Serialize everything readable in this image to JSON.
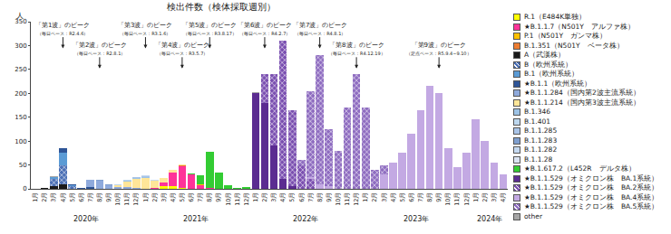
{
  "chart_data": {
    "type": "bar",
    "title": "検出件数（検体採取週別）",
    "y_label": "人",
    "stacked": true,
    "grid": false,
    "legend": "right",
    "ylim": [
      0,
      350
    ],
    "yticks": [
      0,
      50,
      100,
      150,
      200,
      250,
      300,
      350
    ],
    "years": [
      "2020年",
      "2021年",
      "2022年",
      "2023年",
      "2024年"
    ],
    "categories": [
      "1月",
      "2月",
      "3月",
      "4月",
      "5月",
      "6月",
      "7月",
      "8月",
      "9月",
      "10月",
      "11月",
      "12月",
      "1月",
      "2月",
      "3月",
      "4月",
      "5月",
      "6月",
      "7月",
      "8月",
      "9月",
      "10月",
      "11月",
      "12月",
      "1月",
      "2月",
      "3月",
      "4月",
      "5月",
      "6月",
      "7月",
      "8月",
      "9月",
      "10月",
      "11月",
      "12月",
      "1月",
      "2月",
      "3月",
      "4月",
      "5月",
      "6月",
      "7月",
      "8月",
      "9月",
      "10月",
      "11月",
      "12月",
      "1月",
      "2月",
      "3月",
      "4月"
    ],
    "annotations": [
      {
        "text": "「第1波」のピーク",
        "note": "（毎日ベース：R2.4.6）",
        "category_index": 3
      },
      {
        "text": "「第2波」のピーク",
        "note": "（毎日ベース：R2.8.1）",
        "category_index": 7
      },
      {
        "text": "「第3波」のピーク",
        "note": "（毎日ベース：R3.1.6）",
        "category_index": 12
      },
      {
        "text": "「第4波」のピーク",
        "note": "（毎日ベース：R3.5.7）",
        "category_index": 16
      },
      {
        "text": "「第5波」のピーク",
        "note": "（毎日ベース：R3.8.17）",
        "category_index": 19
      },
      {
        "text": "「第6波」のピーク",
        "note": "（毎日ベース：R4.2.7）",
        "category_index": 25
      },
      {
        "text": "「第7波」のピーク",
        "note": "（毎日ベース：R4.8.1）",
        "category_index": 31
      },
      {
        "text": "「第8波」のピーク",
        "note": "（毎日ベース：R4.12.19）",
        "category_index": 35
      },
      {
        "text": "「第9波」のピーク",
        "note": "（定点ベース：R5.9.4~9.10）",
        "category_index": 44
      }
    ],
    "series": [
      {
        "name": "R.1（E484K単独）",
        "color": "#ffff00",
        "values": [
          0,
          0,
          0,
          0,
          0,
          0,
          0,
          0,
          0,
          0,
          0,
          0,
          0,
          0,
          5,
          5,
          2,
          0,
          0,
          0,
          0,
          0,
          0,
          0,
          0,
          0,
          0,
          0,
          0,
          0,
          0,
          0,
          0,
          0,
          0,
          0,
          0,
          0,
          0,
          0,
          0,
          0,
          0,
          0,
          0,
          0,
          0,
          0,
          0,
          0,
          0,
          0
        ]
      },
      {
        "name": "★B.1.1.7（N501Y　アルファ株）",
        "color": "#ff3399",
        "values": [
          0,
          0,
          0,
          0,
          0,
          0,
          0,
          0,
          0,
          0,
          0,
          0,
          0,
          2,
          8,
          30,
          45,
          30,
          8,
          2,
          0,
          0,
          0,
          0,
          0,
          0,
          0,
          0,
          0,
          0,
          0,
          0,
          0,
          0,
          0,
          0,
          0,
          0,
          0,
          0,
          0,
          0,
          0,
          0,
          0,
          0,
          0,
          0,
          0,
          0,
          0,
          0
        ]
      },
      {
        "name": "P.1（N501Y　ガンマ株）",
        "color": "#ffc000",
        "values": [
          0,
          0,
          0,
          0,
          0,
          0,
          0,
          0,
          0,
          0,
          0,
          0,
          0,
          0,
          0,
          0,
          1,
          0,
          1,
          0,
          0,
          0,
          0,
          0,
          0,
          0,
          0,
          0,
          0,
          0,
          0,
          0,
          0,
          0,
          0,
          0,
          0,
          0,
          0,
          0,
          0,
          0,
          0,
          0,
          0,
          0,
          0,
          0,
          0,
          0,
          0,
          0
        ]
      },
      {
        "name": "B.1.351（N501Y　ベータ株）",
        "color": "#ed7d31",
        "values": [
          0,
          0,
          0,
          0,
          0,
          0,
          0,
          0,
          0,
          0,
          0,
          0,
          0,
          0,
          0,
          0,
          1,
          0,
          0,
          0,
          0,
          0,
          0,
          0,
          0,
          0,
          0,
          0,
          0,
          0,
          0,
          0,
          0,
          0,
          0,
          0,
          0,
          0,
          0,
          0,
          0,
          0,
          0,
          0,
          0,
          0,
          0,
          0,
          0,
          0,
          0,
          0
        ]
      },
      {
        "name": "A（武漢株）",
        "color": "#1a1a1a",
        "values": [
          0,
          1,
          5,
          10,
          0,
          0,
          0,
          0,
          0,
          0,
          0,
          0,
          0,
          0,
          0,
          0,
          0,
          0,
          0,
          0,
          0,
          0,
          0,
          0,
          0,
          0,
          0,
          0,
          0,
          0,
          0,
          0,
          0,
          0,
          0,
          0,
          0,
          0,
          0,
          0,
          0,
          0,
          0,
          0,
          0,
          0,
          0,
          0,
          0,
          0,
          0,
          0
        ]
      },
      {
        "name": "B（欧州系統）",
        "color": "#4a6fb5",
        "marker": "hatched",
        "values": [
          0,
          0,
          15,
          40,
          5,
          0,
          0,
          0,
          0,
          0,
          0,
          0,
          0,
          0,
          0,
          0,
          0,
          0,
          0,
          0,
          0,
          0,
          0,
          0,
          0,
          0,
          0,
          0,
          0,
          0,
          0,
          0,
          0,
          0,
          0,
          0,
          0,
          0,
          0,
          0,
          0,
          0,
          0,
          0,
          0,
          0,
          0,
          0,
          0,
          0,
          0,
          0
        ]
      },
      {
        "name": "B.1（欧州系統）",
        "color": "#5b9bd5",
        "values": [
          0,
          0,
          5,
          25,
          3,
          0,
          0,
          0,
          0,
          0,
          0,
          0,
          0,
          0,
          0,
          0,
          0,
          0,
          0,
          0,
          0,
          0,
          0,
          0,
          0,
          0,
          0,
          0,
          0,
          0,
          0,
          0,
          0,
          0,
          0,
          0,
          0,
          0,
          0,
          0,
          0,
          0,
          0,
          0,
          0,
          0,
          0,
          0,
          0,
          0,
          0,
          0
        ]
      },
      {
        "name": "★B.1.1（欧州系統）",
        "color": "#2f5597",
        "values": [
          0,
          0,
          0,
          10,
          2,
          2,
          3,
          0,
          0,
          0,
          0,
          0,
          0,
          0,
          0,
          0,
          0,
          0,
          0,
          0,
          0,
          0,
          0,
          0,
          0,
          0,
          0,
          0,
          0,
          0,
          0,
          0,
          0,
          0,
          0,
          0,
          0,
          0,
          0,
          0,
          0,
          0,
          0,
          0,
          0,
          0,
          0,
          0,
          0,
          0,
          0,
          0
        ]
      },
      {
        "name": "★B.1.1.284（国内第2波主流系統）",
        "color": "#8faadc",
        "values": [
          0,
          0,
          0,
          0,
          0,
          0,
          15,
          17,
          7,
          4,
          3,
          2,
          0,
          0,
          0,
          0,
          0,
          0,
          0,
          0,
          0,
          0,
          0,
          0,
          0,
          0,
          0,
          0,
          0,
          0,
          0,
          0,
          0,
          0,
          0,
          0,
          0,
          0,
          0,
          0,
          0,
          0,
          0,
          0,
          0,
          0,
          0,
          0,
          0,
          0,
          0,
          0
        ]
      },
      {
        "name": "★B.1.1.214（国内第3波主流系統）",
        "color": "#ffe699",
        "values": [
          0,
          0,
          0,
          0,
          0,
          0,
          0,
          0,
          0,
          3,
          12,
          18,
          22,
          15,
          10,
          5,
          2,
          0,
          0,
          0,
          0,
          0,
          0,
          0,
          0,
          0,
          0,
          0,
          0,
          0,
          0,
          0,
          0,
          0,
          0,
          0,
          0,
          0,
          0,
          0,
          0,
          0,
          0,
          0,
          0,
          0,
          0,
          0,
          0,
          0,
          0,
          0
        ]
      },
      {
        "name": "B.1.346",
        "color": "#9dc3e6",
        "values": [
          0,
          0,
          0,
          0,
          0,
          0,
          0,
          0,
          0,
          0,
          2,
          2,
          3,
          0,
          0,
          0,
          0,
          0,
          0,
          0,
          0,
          0,
          0,
          0,
          0,
          0,
          0,
          0,
          0,
          0,
          0,
          0,
          0,
          0,
          0,
          0,
          0,
          0,
          0,
          0,
          0,
          0,
          0,
          0,
          0,
          0,
          0,
          0,
          0,
          0,
          0,
          0
        ]
      },
      {
        "name": "B.1.401",
        "color": "#bdd7ee",
        "values": [
          0,
          0,
          0,
          0,
          0,
          0,
          0,
          0,
          0,
          2,
          1,
          0,
          0,
          0,
          0,
          0,
          0,
          0,
          0,
          0,
          0,
          0,
          0,
          0,
          0,
          0,
          0,
          0,
          0,
          0,
          0,
          0,
          0,
          0,
          0,
          0,
          0,
          0,
          0,
          0,
          0,
          0,
          0,
          0,
          0,
          0,
          0,
          0,
          0,
          0,
          0,
          0
        ]
      },
      {
        "name": "B.1.1.285",
        "color": "#a9c4e8",
        "values": [
          0,
          0,
          0,
          0,
          0,
          0,
          0,
          0,
          0,
          0,
          0,
          2,
          2,
          0,
          0,
          0,
          0,
          0,
          0,
          0,
          0,
          0,
          0,
          0,
          0,
          0,
          0,
          0,
          0,
          0,
          0,
          0,
          0,
          0,
          0,
          0,
          0,
          0,
          0,
          0,
          0,
          0,
          0,
          0,
          0,
          0,
          0,
          0,
          0,
          0,
          0,
          0
        ]
      },
      {
        "name": "B.1.1.283",
        "color": "#7f9fcf",
        "values": [
          0,
          0,
          0,
          0,
          0,
          0,
          0,
          2,
          2,
          0,
          0,
          0,
          0,
          0,
          0,
          0,
          0,
          0,
          0,
          0,
          0,
          0,
          0,
          0,
          0,
          0,
          0,
          0,
          0,
          0,
          0,
          0,
          0,
          0,
          0,
          0,
          0,
          0,
          0,
          0,
          0,
          0,
          0,
          0,
          0,
          0,
          0,
          0,
          0,
          0,
          0,
          0
        ]
      },
      {
        "name": "B.1.1.282",
        "color": "#c5d9f1",
        "values": [
          0,
          0,
          0,
          0,
          0,
          0,
          0,
          0,
          0,
          0,
          0,
          0,
          1,
          2,
          0,
          0,
          0,
          0,
          0,
          0,
          0,
          0,
          0,
          0,
          0,
          0,
          0,
          0,
          0,
          0,
          0,
          0,
          0,
          0,
          0,
          0,
          0,
          0,
          0,
          0,
          0,
          0,
          0,
          0,
          0,
          0,
          0,
          0,
          0,
          0,
          0,
          0
        ]
      },
      {
        "name": "B.1.1.28",
        "color": "#dae3f3",
        "values": [
          0,
          0,
          0,
          0,
          0,
          0,
          0,
          0,
          1,
          0,
          0,
          0,
          0,
          0,
          0,
          0,
          0,
          0,
          0,
          0,
          0,
          0,
          0,
          0,
          0,
          0,
          0,
          0,
          0,
          0,
          0,
          0,
          0,
          0,
          0,
          0,
          0,
          0,
          0,
          0,
          0,
          0,
          0,
          0,
          0,
          0,
          0,
          0,
          0,
          0,
          0,
          0
        ]
      },
      {
        "name": "★B.1.617.2（L452R　デルタ株）",
        "color": "#33cc33",
        "values": [
          0,
          0,
          0,
          0,
          0,
          0,
          0,
          0,
          0,
          0,
          0,
          0,
          0,
          0,
          0,
          0,
          0,
          3,
          20,
          75,
          35,
          8,
          2,
          3,
          0,
          0,
          0,
          0,
          0,
          0,
          0,
          0,
          0,
          0,
          0,
          0,
          0,
          0,
          0,
          0,
          0,
          0,
          0,
          0,
          0,
          0,
          0,
          0,
          0,
          0,
          0,
          0
        ]
      },
      {
        "name": "★B.1.1.529（オミクロン株　BA.1系統）",
        "color": "#5b2c91",
        "values": [
          0,
          0,
          0,
          0,
          0,
          0,
          0,
          0,
          0,
          0,
          0,
          0,
          0,
          0,
          0,
          0,
          0,
          0,
          0,
          0,
          0,
          0,
          0,
          0,
          200,
          180,
          90,
          20,
          5,
          0,
          0,
          0,
          0,
          0,
          0,
          0,
          0,
          0,
          0,
          0,
          0,
          0,
          0,
          0,
          0,
          0,
          0,
          0,
          0,
          0,
          0,
          0
        ]
      },
      {
        "name": "★B.1.1.529（オミクロン株　BA.2系統）",
        "color": "#7a4fb0",
        "marker": "hatched",
        "values": [
          0,
          0,
          0,
          0,
          0,
          0,
          0,
          0,
          0,
          0,
          0,
          0,
          0,
          0,
          0,
          0,
          0,
          0,
          0,
          0,
          0,
          0,
          0,
          0,
          0,
          60,
          150,
          290,
          160,
          50,
          20,
          0,
          0,
          0,
          0,
          0,
          0,
          0,
          0,
          0,
          0,
          0,
          0,
          0,
          0,
          0,
          0,
          0,
          0,
          0,
          0,
          0
        ]
      },
      {
        "name": "★B.1.1.529（オミクロン株　BA.4系統）",
        "color": "#c3a9e3",
        "values": [
          0,
          0,
          0,
          0,
          0,
          0,
          0,
          0,
          0,
          0,
          0,
          0,
          0,
          0,
          0,
          0,
          0,
          0,
          0,
          0,
          0,
          0,
          0,
          0,
          0,
          0,
          0,
          0,
          0,
          0,
          5,
          10,
          5,
          0,
          0,
          0,
          0,
          0,
          30,
          55,
          75,
          115,
          165,
          215,
          200,
          85,
          45,
          75,
          145,
          100,
          55,
          30
        ]
      },
      {
        "name": "★B.1.1.529（オミクロン株　BA.5系統）",
        "color": "#8e6cc0",
        "marker": "hatched",
        "values": [
          0,
          0,
          0,
          0,
          0,
          0,
          0,
          0,
          0,
          0,
          0,
          0,
          0,
          0,
          0,
          0,
          0,
          0,
          0,
          0,
          0,
          0,
          0,
          0,
          0,
          0,
          0,
          0,
          0,
          10,
          180,
          270,
          120,
          80,
          170,
          240,
          170,
          40,
          20,
          0,
          0,
          0,
          0,
          0,
          0,
          0,
          0,
          0,
          0,
          0,
          0,
          0
        ]
      },
      {
        "name": "other",
        "color": "#a6a6a6",
        "values": [
          0,
          0,
          2,
          0,
          0,
          0,
          0,
          0,
          0,
          0,
          0,
          0,
          0,
          0,
          0,
          0,
          0,
          0,
          0,
          0,
          0,
          0,
          0,
          0,
          3,
          0,
          0,
          0,
          0,
          0,
          0,
          0,
          0,
          0,
          0,
          0,
          0,
          0,
          0,
          0,
          0,
          0,
          0,
          0,
          0,
          0,
          0,
          0,
          0,
          0,
          0,
          0
        ]
      }
    ]
  }
}
